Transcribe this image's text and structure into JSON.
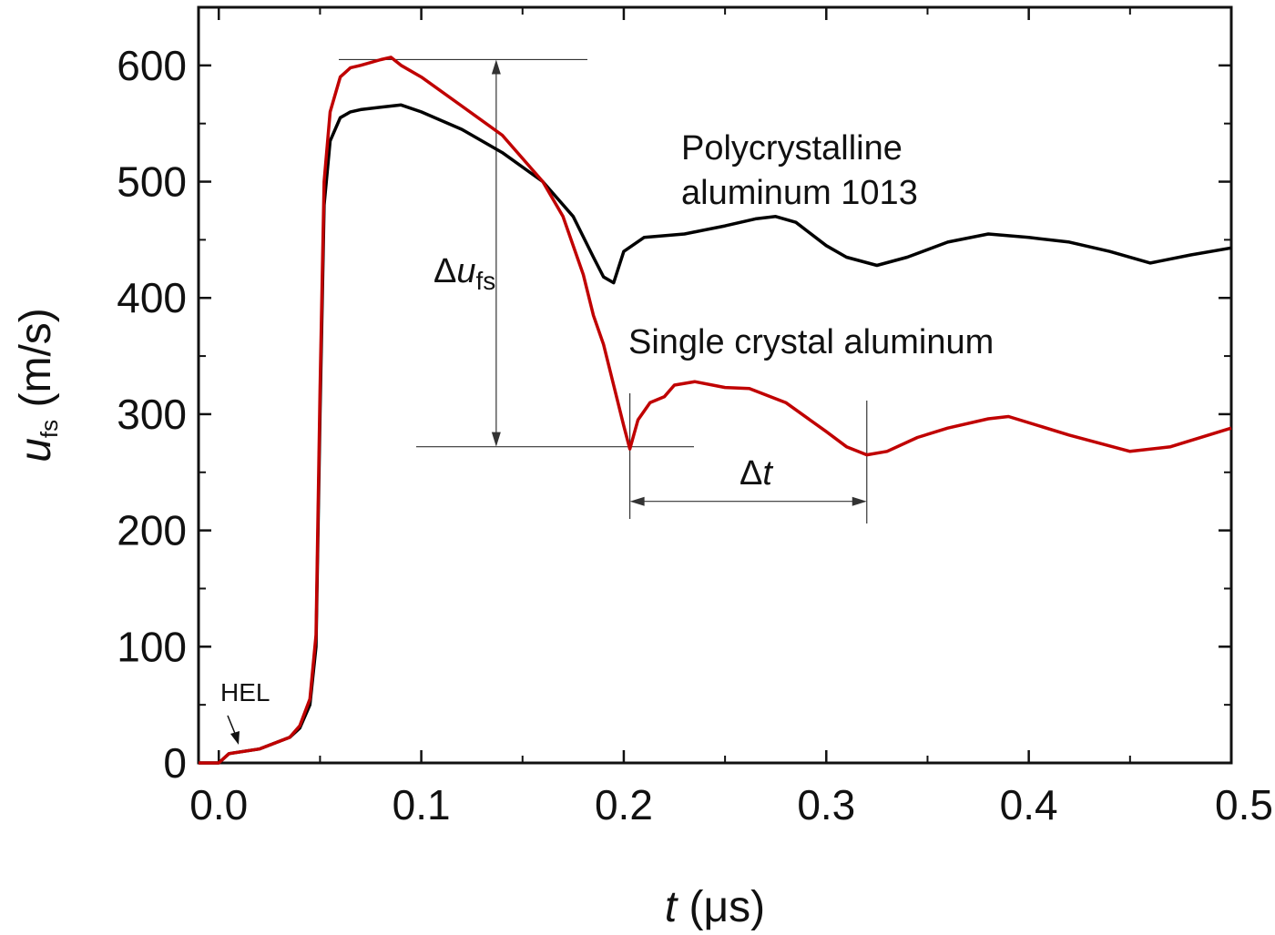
{
  "chart_data": {
    "type": "line",
    "xlabel_var": "t",
    "xlabel_unit": " (μs)",
    "ylabel_var": "u",
    "ylabel_sub": "fs",
    "ylabel_unit": " (m/s)",
    "xlim": [
      -0.01,
      0.5
    ],
    "ylim": [
      0,
      650
    ],
    "xticks": [
      0.0,
      0.1,
      0.2,
      0.3,
      0.4,
      0.5
    ],
    "xtick_labels": [
      "0.0",
      "0.1",
      "0.2",
      "0.3",
      "0.4",
      "0.5"
    ],
    "yticks": [
      0,
      100,
      200,
      300,
      400,
      500,
      600
    ],
    "ytick_labels": [
      "0",
      "100",
      "200",
      "300",
      "400",
      "500",
      "600"
    ],
    "grid": false,
    "legend": "none",
    "series": [
      {
        "name": "Polycrystalline aluminum 1013",
        "color": "#000000",
        "x": [
          -0.01,
          0.0,
          0.005,
          0.02,
          0.035,
          0.04,
          0.045,
          0.048,
          0.05,
          0.052,
          0.055,
          0.06,
          0.065,
          0.07,
          0.08,
          0.09,
          0.1,
          0.12,
          0.14,
          0.16,
          0.175,
          0.185,
          0.19,
          0.195,
          0.2,
          0.21,
          0.23,
          0.25,
          0.265,
          0.275,
          0.285,
          0.3,
          0.31,
          0.325,
          0.34,
          0.36,
          0.38,
          0.4,
          0.42,
          0.44,
          0.46,
          0.48,
          0.5
        ],
        "y": [
          0,
          0,
          8,
          12,
          22,
          30,
          50,
          100,
          300,
          480,
          535,
          555,
          560,
          562,
          564,
          566,
          560,
          545,
          525,
          500,
          470,
          435,
          418,
          413,
          440,
          452,
          455,
          462,
          468,
          470,
          465,
          445,
          435,
          428,
          435,
          448,
          455,
          452,
          448,
          440,
          430,
          437,
          443
        ]
      },
      {
        "name": "Single crystal aluminum",
        "color": "#c00000",
        "x": [
          -0.01,
          0.0,
          0.005,
          0.02,
          0.035,
          0.04,
          0.045,
          0.048,
          0.05,
          0.052,
          0.055,
          0.06,
          0.065,
          0.07,
          0.08,
          0.085,
          0.09,
          0.1,
          0.12,
          0.14,
          0.16,
          0.17,
          0.18,
          0.185,
          0.19,
          0.195,
          0.2,
          0.203,
          0.207,
          0.213,
          0.22,
          0.225,
          0.235,
          0.25,
          0.262,
          0.28,
          0.3,
          0.31,
          0.32,
          0.33,
          0.345,
          0.36,
          0.38,
          0.39,
          0.42,
          0.45,
          0.47,
          0.5
        ],
        "y": [
          0,
          0,
          8,
          12,
          22,
          32,
          55,
          110,
          320,
          500,
          560,
          590,
          598,
          600,
          605,
          607,
          600,
          590,
          565,
          540,
          500,
          470,
          420,
          385,
          360,
          325,
          290,
          270,
          295,
          310,
          315,
          325,
          328,
          323,
          322,
          310,
          285,
          272,
          265,
          268,
          280,
          288,
          296,
          298,
          282,
          268,
          272,
          288
        ]
      }
    ],
    "annotations": {
      "poly_line1": "Polycrystalline",
      "poly_line2": "aluminum 1013",
      "single_label": "Single crystal aluminum",
      "delta_u_prefix": "Δ",
      "delta_u_var": "u",
      "delta_u_sub": "fs",
      "delta_t_prefix": "Δ",
      "delta_t_var": "t",
      "hel": "HEL"
    },
    "markers": {
      "peak_y": 605,
      "spall_y": 272,
      "spall_x": 0.203,
      "second_min_x": 0.32,
      "delta_u_x": 0.137,
      "delta_t_y": 225
    }
  }
}
